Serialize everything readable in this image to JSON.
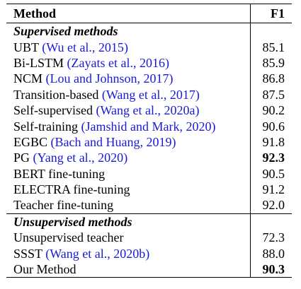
{
  "header": {
    "method": "Method",
    "f1": "F1"
  },
  "sections": [
    {
      "title": "Supervised methods",
      "rows": [
        {
          "name": "UBT",
          "cite": "Wu et al., 2015",
          "f1": "85.1",
          "bold": false
        },
        {
          "name": "Bi-LSTM",
          "cite": "Zayats et al., 2016",
          "f1": "85.9",
          "bold": false
        },
        {
          "name": "NCM",
          "cite": "Lou and Johnson, 2017",
          "f1": "86.8",
          "bold": false
        },
        {
          "name": "Transition-based",
          "cite": "Wang et al., 2017",
          "f1": "87.5",
          "bold": false
        },
        {
          "name": "Self-supervised",
          "cite": "Wang et al., 2020a",
          "f1": "90.2",
          "bold": false
        },
        {
          "name": "Self-training",
          "cite": "Jamshid and Mark, 2020",
          "f1": "90.6",
          "bold": false
        },
        {
          "name": "EGBC",
          "cite": "Bach and Huang, 2019",
          "f1": "91.8",
          "bold": false
        },
        {
          "name": "PG",
          "cite": "Yang et al., 2020",
          "f1": "92.3",
          "bold": true
        },
        {
          "name": "BERT fine-tuning",
          "cite": "",
          "f1": "90.5",
          "bold": false
        },
        {
          "name": "ELECTRA fine-tuning",
          "cite": "",
          "f1": "91.2",
          "bold": false
        },
        {
          "name": "Teacher fine-tuning",
          "cite": "",
          "f1": "92.0",
          "bold": false
        }
      ]
    },
    {
      "title": "Unsupervised methods",
      "rows": [
        {
          "name": "Unsupervised teacher",
          "cite": "",
          "f1": "72.3",
          "bold": false
        },
        {
          "name": "SSST",
          "cite": "Wang et al., 2020b",
          "f1": "88.0",
          "bold": false
        },
        {
          "name": "Our Method",
          "cite": "",
          "f1": "90.3",
          "bold": true
        }
      ]
    }
  ]
}
